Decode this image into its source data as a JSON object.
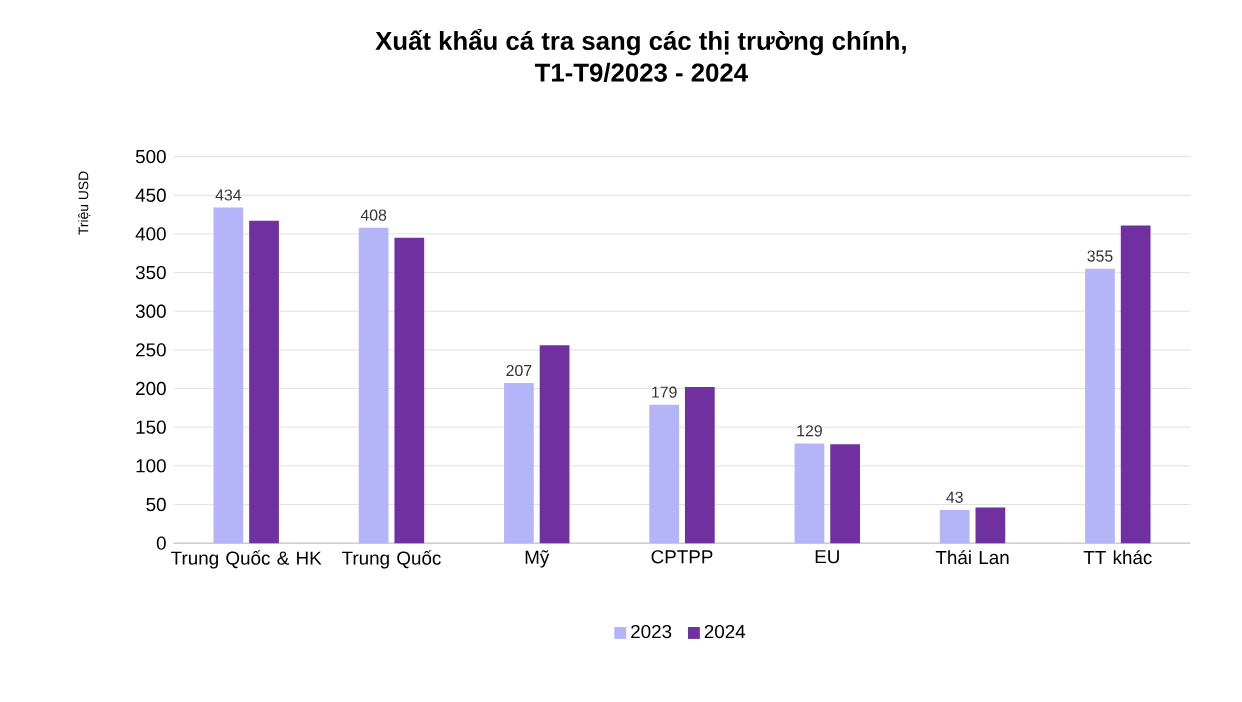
{
  "chart_data": {
    "type": "bar",
    "title": "Xuất khẩu cá tra sang các thị trường chính,\nT1-T9/2023 - 2024",
    "ylabel": "Triệu USD",
    "categories": [
      "Trung Quốc & HK",
      "Trung Quốc",
      "Mỹ",
      "CPTPP",
      "EU",
      "Thái Lan",
      "TT khác"
    ],
    "series": [
      {
        "name": "2023",
        "color": "#b4b4f8",
        "values": [
          434,
          408,
          207,
          179,
          129,
          43,
          355
        ],
        "value_labels": [
          "434",
          "408",
          "207",
          "179",
          "129",
          "43",
          "355"
        ]
      },
      {
        "name": "2024",
        "color": "#7030a0",
        "values": [
          417,
          395,
          256,
          202,
          128,
          46,
          411
        ]
      }
    ],
    "ylim": [
      0,
      500
    ],
    "yticks": [
      0,
      50,
      100,
      150,
      200,
      250,
      300,
      350,
      400,
      450,
      500
    ],
    "grid": "y",
    "legend": "bottom"
  }
}
